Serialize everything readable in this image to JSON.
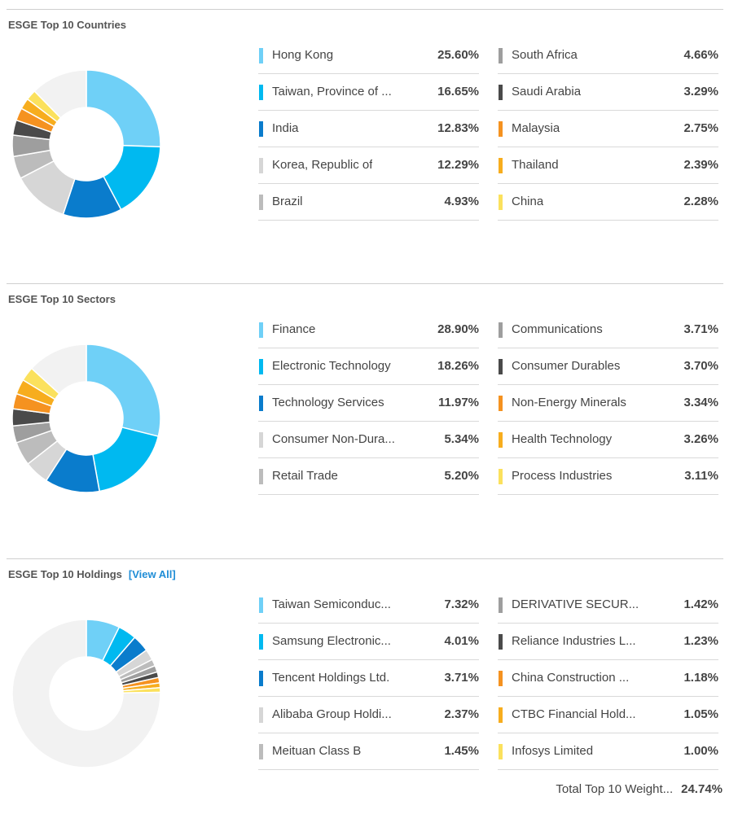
{
  "countries": {
    "title": "ESGE Top 10 Countries",
    "items": [
      {
        "label": "Hong Kong",
        "value": "25.60%",
        "color": "#6fd0f7"
      },
      {
        "label": "Taiwan, Province of ...",
        "value": "16.65%",
        "color": "#00b9f0"
      },
      {
        "label": "India",
        "value": "12.83%",
        "color": "#0a7ccc"
      },
      {
        "label": "Korea, Republic of",
        "value": "12.29%",
        "color": "#d6d6d6"
      },
      {
        "label": "Brazil",
        "value": "4.93%",
        "color": "#bcbcbc"
      },
      {
        "label": "South Africa",
        "value": "4.66%",
        "color": "#9e9e9e"
      },
      {
        "label": "Saudi Arabia",
        "value": "3.29%",
        "color": "#4a4a4a"
      },
      {
        "label": "Malaysia",
        "value": "2.75%",
        "color": "#f59220"
      },
      {
        "label": "Thailand",
        "value": "2.39%",
        "color": "#f7ad1e"
      },
      {
        "label": "China",
        "value": "2.28%",
        "color": "#fbe15d"
      }
    ]
  },
  "sectors": {
    "title": "ESGE Top 10 Sectors",
    "items": [
      {
        "label": "Finance",
        "value": "28.90%",
        "color": "#6fd0f7"
      },
      {
        "label": "Electronic Technology",
        "value": "18.26%",
        "color": "#00b9f0"
      },
      {
        "label": "Technology Services",
        "value": "11.97%",
        "color": "#0a7ccc"
      },
      {
        "label": "Consumer Non-Dura...",
        "value": "5.34%",
        "color": "#d6d6d6"
      },
      {
        "label": "Retail Trade",
        "value": "5.20%",
        "color": "#bcbcbc"
      },
      {
        "label": "Communications",
        "value": "3.71%",
        "color": "#9e9e9e"
      },
      {
        "label": "Consumer Durables",
        "value": "3.70%",
        "color": "#4a4a4a"
      },
      {
        "label": "Non-Energy Minerals",
        "value": "3.34%",
        "color": "#f59220"
      },
      {
        "label": "Health Technology",
        "value": "3.26%",
        "color": "#f7ad1e"
      },
      {
        "label": "Process Industries",
        "value": "3.11%",
        "color": "#fbe15d"
      }
    ]
  },
  "holdings": {
    "title": "ESGE Top 10 Holdings",
    "view_all": "[View All]",
    "items": [
      {
        "label": "Taiwan Semiconduc...",
        "value": "7.32%",
        "color": "#6fd0f7"
      },
      {
        "label": "Samsung Electronic...",
        "value": "4.01%",
        "color": "#00b9f0"
      },
      {
        "label": "Tencent Holdings Ltd.",
        "value": "3.71%",
        "color": "#0a7ccc"
      },
      {
        "label": "Alibaba Group Holdi...",
        "value": "2.37%",
        "color": "#d6d6d6"
      },
      {
        "label": "Meituan Class B",
        "value": "1.45%",
        "color": "#bcbcbc"
      },
      {
        "label": "DERIVATIVE SECUR...",
        "value": "1.42%",
        "color": "#9e9e9e"
      },
      {
        "label": "Reliance Industries L...",
        "value": "1.23%",
        "color": "#4a4a4a"
      },
      {
        "label": "China Construction ...",
        "value": "1.18%",
        "color": "#f59220"
      },
      {
        "label": "CTBC Financial Hold...",
        "value": "1.05%",
        "color": "#f7ad1e"
      },
      {
        "label": "Infosys Limited",
        "value": "1.00%",
        "color": "#fbe15d"
      }
    ],
    "total_label": "Total Top 10 Weight...",
    "total_value": "24.74%"
  },
  "remainder_color": "#f2f2f2",
  "chart_data": [
    {
      "type": "pie",
      "title": "ESGE Top 10 Countries",
      "categories": [
        "Hong Kong",
        "Taiwan, Province of ...",
        "India",
        "Korea, Republic of",
        "Brazil",
        "South Africa",
        "Saudi Arabia",
        "Malaysia",
        "Thailand",
        "China"
      ],
      "values": [
        25.6,
        16.65,
        12.83,
        12.29,
        4.93,
        4.66,
        3.29,
        2.75,
        2.39,
        2.28
      ],
      "remainder": 12.33,
      "legend": "right"
    },
    {
      "type": "pie",
      "title": "ESGE Top 10 Sectors",
      "categories": [
        "Finance",
        "Electronic Technology",
        "Technology Services",
        "Consumer Non-Dura...",
        "Retail Trade",
        "Communications",
        "Consumer Durables",
        "Non-Energy Minerals",
        "Health Technology",
        "Process Industries"
      ],
      "values": [
        28.9,
        18.26,
        11.97,
        5.34,
        5.2,
        3.71,
        3.7,
        3.34,
        3.26,
        3.11
      ],
      "remainder": 13.21,
      "legend": "right"
    },
    {
      "type": "pie",
      "title": "ESGE Top 10 Holdings",
      "categories": [
        "Taiwan Semiconduc...",
        "Samsung Electronic...",
        "Tencent Holdings Ltd.",
        "Alibaba Group Holdi...",
        "Meituan Class B",
        "DERIVATIVE SECUR...",
        "Reliance Industries L...",
        "China Construction ...",
        "CTBC Financial Hold...",
        "Infosys Limited"
      ],
      "values": [
        7.32,
        4.01,
        3.71,
        2.37,
        1.45,
        1.42,
        1.23,
        1.18,
        1.05,
        1.0
      ],
      "remainder": 75.26,
      "legend": "right"
    }
  ]
}
